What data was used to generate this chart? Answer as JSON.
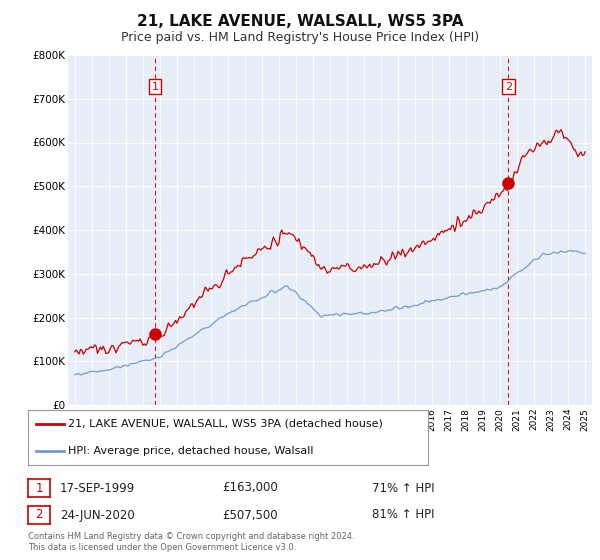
{
  "title": "21, LAKE AVENUE, WALSALL, WS5 3PA",
  "subtitle": "Price paid vs. HM Land Registry's House Price Index (HPI)",
  "title_fontsize": 11,
  "subtitle_fontsize": 9,
  "ylim": [
    0,
    800000
  ],
  "yticks": [
    0,
    100000,
    200000,
    300000,
    400000,
    500000,
    600000,
    700000,
    800000
  ],
  "ytick_labels": [
    "£0",
    "£100K",
    "£200K",
    "£300K",
    "£400K",
    "£500K",
    "£600K",
    "£700K",
    "£800K"
  ],
  "background_color": "#ffffff",
  "plot_bg_color": "#e8eef8",
  "grid_color": "#ffffff",
  "red_color": "#cc0000",
  "blue_color": "#7799cc",
  "transaction1": {
    "date": "17-SEP-1999",
    "price": 163000,
    "pct": "71%",
    "label": "1"
  },
  "transaction2": {
    "date": "24-JUN-2020",
    "price": 507500,
    "pct": "81%",
    "label": "2"
  },
  "legend_entry1": "21, LAKE AVENUE, WALSALL, WS5 3PA (detached house)",
  "legend_entry2": "HPI: Average price, detached house, Walsall",
  "footer": "Contains HM Land Registry data © Crown copyright and database right 2024.\nThis data is licensed under the Open Government Licence v3.0.",
  "marker1_x": 1999.72,
  "marker1_y": 163000,
  "marker2_x": 2020.48,
  "marker2_y": 507500,
  "vline1_x": 1999.72,
  "vline2_x": 2020.48,
  "xmin": 1995,
  "xmax": 2025
}
